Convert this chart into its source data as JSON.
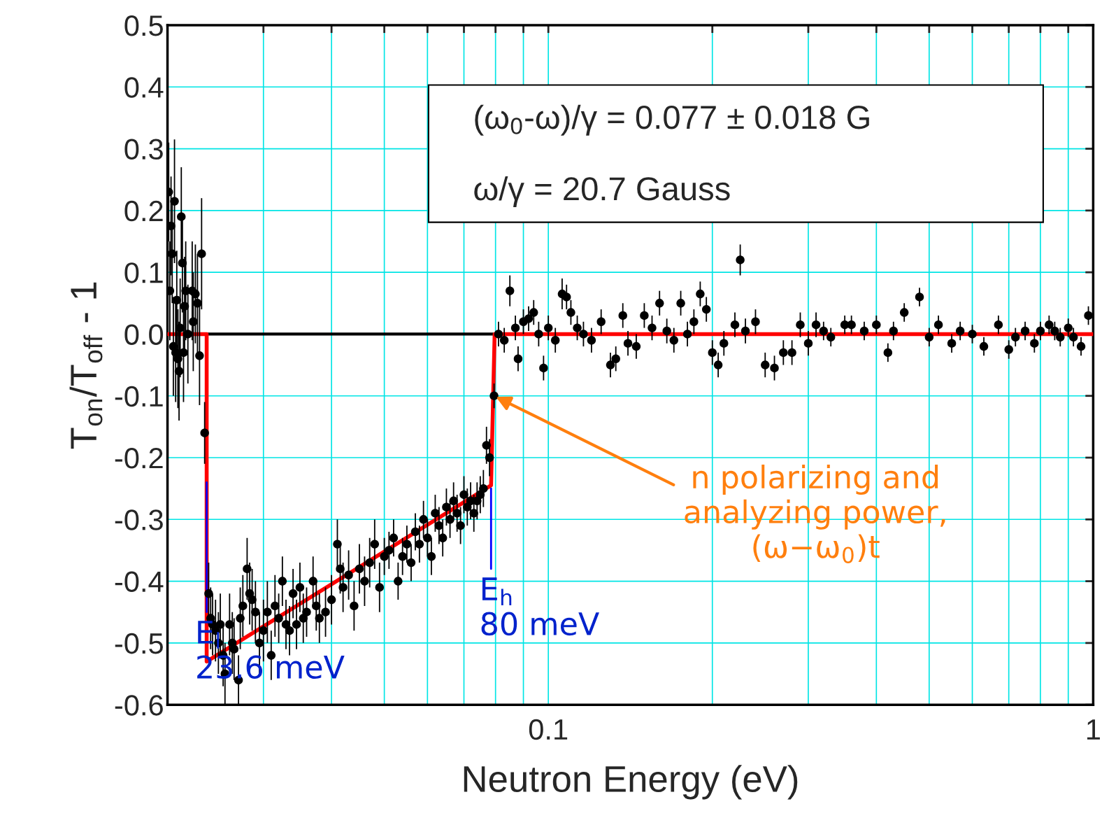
{
  "chart_data": {
    "type": "scatter",
    "xlabel": "Neutron Energy (eV)",
    "ylabel": "T$_{on}$/T$_{off}$ - 1",
    "log": "x",
    "grid": true,
    "marker": "circle",
    "xlim": [
      0.02,
      1
    ],
    "ylim": [
      -0.6,
      0.5
    ],
    "xticks": [
      {
        "value": 0.02,
        "label": null
      },
      {
        "value": 0.03,
        "label": null
      },
      {
        "value": 0.04,
        "label": null
      },
      {
        "value": 0.05,
        "label": null
      },
      {
        "value": 0.06,
        "label": null
      },
      {
        "value": 0.07,
        "label": null
      },
      {
        "value": 0.08,
        "label": null
      },
      {
        "value": 0.09,
        "label": null
      },
      0.1,
      {
        "value": 0.2,
        "label": null
      },
      {
        "value": 0.3,
        "label": null
      },
      {
        "value": 0.4,
        "label": null
      },
      {
        "value": 0.5,
        "label": null
      },
      {
        "value": 0.6,
        "label": null
      },
      {
        "value": 0.7,
        "label": null
      },
      {
        "value": 0.8,
        "label": null
      },
      {
        "value": 0.9,
        "label": null
      },
      1
    ],
    "yticks": [
      -0.6,
      -0.5,
      -0.4,
      -0.3,
      -0.2,
      -0.1,
      {
        "value": 0,
        "label": "0.0"
      },
      0.1,
      0.2,
      0.3,
      0.4,
      0.5
    ],
    "ref_lines": [
      {
        "axis": "y",
        "value": 0,
        "color": "#000000"
      }
    ],
    "series": [
      {
        "color": "#000000",
        "x": [
          0.0201,
          0.0202,
          0.0203,
          0.0204,
          0.0205,
          0.0206,
          0.0207,
          0.0208,
          0.0209,
          0.021,
          0.0211,
          0.0212,
          0.0213,
          0.0214,
          0.0215,
          0.0216,
          0.0218,
          0.0222,
          0.0223,
          0.0225,
          0.0227,
          0.0229,
          0.0231,
          0.0234,
          0.0238,
          0.024,
          0.0242,
          0.0245,
          0.0248,
          0.025,
          0.0253,
          0.0255,
          0.026,
          0.0263,
          0.0265,
          0.027,
          0.0272,
          0.0275,
          0.028,
          0.0283,
          0.0286,
          0.029,
          0.0295,
          0.03,
          0.0305,
          0.031,
          0.0315,
          0.032,
          0.0325,
          0.033,
          0.0335,
          0.034,
          0.0345,
          0.035,
          0.0355,
          0.036,
          0.037,
          0.0375,
          0.038,
          0.039,
          0.04,
          0.041,
          0.0415,
          0.042,
          0.043,
          0.044,
          0.045,
          0.046,
          0.047,
          0.048,
          0.049,
          0.05,
          0.051,
          0.052,
          0.053,
          0.054,
          0.055,
          0.056,
          0.057,
          0.058,
          0.059,
          0.06,
          0.061,
          0.062,
          0.063,
          0.064,
          0.065,
          0.066,
          0.067,
          0.068,
          0.069,
          0.07,
          0.071,
          0.072,
          0.073,
          0.074,
          0.075,
          0.076,
          0.077,
          0.078,
          0.0795,
          0.081,
          0.083,
          0.085,
          0.087,
          0.088,
          0.09,
          0.092,
          0.094,
          0.096,
          0.098,
          0.1,
          0.103,
          0.106,
          0.108,
          0.11,
          0.113,
          0.116,
          0.12,
          0.125,
          0.13,
          0.133,
          0.137,
          0.14,
          0.145,
          0.15,
          0.155,
          0.16,
          0.165,
          0.17,
          0.175,
          0.18,
          0.185,
          0.19,
          0.195,
          0.2,
          0.205,
          0.21,
          0.22,
          0.225,
          0.23,
          0.24,
          0.25,
          0.26,
          0.27,
          0.28,
          0.29,
          0.3,
          0.31,
          0.32,
          0.33,
          0.35,
          0.36,
          0.38,
          0.4,
          0.42,
          0.43,
          0.45,
          0.48,
          0.5,
          0.52,
          0.55,
          0.57,
          0.6,
          0.63,
          0.67,
          0.7,
          0.72,
          0.75,
          0.78,
          0.8,
          0.83,
          0.85,
          0.87,
          0.9,
          0.92,
          0.95,
          0.98
        ],
        "values": [
          0.23,
          0.07,
          0.175,
          0.13,
          -0.02,
          0.215,
          -0.03,
          0.055,
          -0.04,
          -0.06,
          0.01,
          0.19,
          0.115,
          -0.03,
          0.045,
          0.07,
          0.0,
          0.07,
          0.02,
          0.065,
          0.05,
          -0.035,
          0.13,
          -0.16,
          -0.42,
          -0.46,
          -0.47,
          -0.48,
          -0.5,
          -0.47,
          -0.52,
          -0.55,
          -0.47,
          -0.5,
          -0.51,
          -0.56,
          -0.46,
          -0.44,
          -0.38,
          -0.42,
          -0.43,
          -0.45,
          -0.5,
          -0.48,
          -0.45,
          -0.52,
          -0.44,
          -0.46,
          -0.4,
          -0.47,
          -0.48,
          -0.42,
          -0.47,
          -0.41,
          -0.46,
          -0.45,
          -0.4,
          -0.44,
          -0.46,
          -0.45,
          -0.43,
          -0.34,
          -0.38,
          -0.41,
          -0.39,
          -0.44,
          -0.38,
          -0.4,
          -0.37,
          -0.34,
          -0.41,
          -0.36,
          -0.35,
          -0.33,
          -0.4,
          -0.36,
          -0.34,
          -0.37,
          -0.32,
          -0.34,
          -0.3,
          -0.33,
          -0.36,
          -0.29,
          -0.31,
          -0.33,
          -0.28,
          -0.3,
          -0.27,
          -0.29,
          -0.31,
          -0.26,
          -0.28,
          -0.27,
          -0.29,
          -0.27,
          -0.26,
          -0.25,
          -0.18,
          -0.2,
          -0.1,
          0.0,
          -0.01,
          0.07,
          0.01,
          -0.04,
          0.02,
          0.025,
          0.035,
          0.0,
          -0.055,
          0.01,
          -0.01,
          0.065,
          0.06,
          0.035,
          0.01,
          0.0,
          -0.01,
          0.02,
          -0.05,
          -0.04,
          0.03,
          -0.015,
          -0.02,
          0.03,
          0.01,
          0.05,
          0.005,
          -0.01,
          0.05,
          0.0,
          0.02,
          0.065,
          0.04,
          -0.03,
          -0.05,
          -0.015,
          0.015,
          0.12,
          0.005,
          0.02,
          -0.05,
          -0.055,
          -0.03,
          -0.03,
          0.015,
          -0.015,
          0.015,
          0.005,
          -0.005,
          0.015,
          0.015,
          0.005,
          0.015,
          -0.03,
          0.005,
          0.035,
          0.06,
          -0.005,
          0.015,
          -0.015,
          0.005,
          0.0,
          -0.02,
          0.015,
          -0.025,
          -0.005,
          0.005,
          -0.015,
          0.005,
          0.015,
          0.005,
          -0.005,
          0.01,
          -0.005,
          -0.02,
          0.03
        ],
        "errors": [
          0.08,
          0.08,
          0.08,
          0.08,
          0.08,
          0.1,
          0.08,
          0.08,
          0.08,
          0.08,
          0.08,
          0.08,
          0.08,
          0.08,
          0.08,
          0.08,
          0.08,
          0.08,
          0.08,
          0.08,
          0.08,
          0.08,
          0.09,
          0.05,
          0.05,
          0.05,
          0.05,
          0.05,
          0.05,
          0.05,
          0.05,
          0.05,
          0.05,
          0.05,
          0.05,
          0.04,
          0.05,
          0.05,
          0.05,
          0.05,
          0.05,
          0.05,
          0.05,
          0.05,
          0.05,
          0.04,
          0.05,
          0.04,
          0.04,
          0.04,
          0.04,
          0.04,
          0.04,
          0.04,
          0.04,
          0.04,
          0.04,
          0.04,
          0.04,
          0.04,
          0.04,
          0.04,
          0.04,
          0.04,
          0.04,
          0.04,
          0.04,
          0.04,
          0.04,
          0.04,
          0.04,
          0.03,
          0.03,
          0.03,
          0.03,
          0.03,
          0.03,
          0.03,
          0.03,
          0.03,
          0.03,
          0.03,
          0.03,
          0.03,
          0.03,
          0.03,
          0.03,
          0.03,
          0.03,
          0.03,
          0.03,
          0.03,
          0.03,
          0.03,
          0.03,
          0.03,
          0.03,
          0.03,
          0.03,
          0.03,
          0.02,
          0.02,
          0.02,
          0.025,
          0.02,
          0.02,
          0.02,
          0.02,
          0.02,
          0.02,
          0.02,
          0.02,
          0.02,
          0.025,
          0.02,
          0.02,
          0.02,
          0.02,
          0.02,
          0.02,
          0.02,
          0.02,
          0.02,
          0.02,
          0.02,
          0.02,
          0.02,
          0.02,
          0.02,
          0.02,
          0.02,
          0.02,
          0.02,
          0.02,
          0.02,
          0.02,
          0.02,
          0.02,
          0.02,
          0.025,
          0.02,
          0.02,
          0.02,
          0.02,
          0.02,
          0.02,
          0.02,
          0.02,
          0.02,
          0.015,
          0.015,
          0.015,
          0.015,
          0.015,
          0.015,
          0.015,
          0.015,
          0.015,
          0.015,
          0.015,
          0.015,
          0.015,
          0.015,
          0.015,
          0.015,
          0.015,
          0.015,
          0.015,
          0.015,
          0.015,
          0.015,
          0.015,
          0.015,
          0.015,
          0.015,
          0.015,
          0.015,
          0.015
        ]
      },
      {
        "type": "line",
        "marker": "none",
        "color": "#ff0000",
        "x": [
          0.02,
          0.0236,
          0.0236,
          0.0785,
          0.0797,
          1
        ],
        "values": [
          0,
          0,
          -0.53,
          -0.245,
          0,
          0
        ]
      },
      {
        "type": "line",
        "marker": "none",
        "color": "#0000ff",
        "x": [
          0.0236,
          0.0236
        ],
        "values": [
          -0.24,
          -0.45
        ]
      },
      {
        "type": "line",
        "marker": "none",
        "color": "#0000ff",
        "x": [
          0.0785,
          0.0785
        ],
        "values": [
          -0.25,
          -0.38
        ]
      }
    ],
    "annotations": [
      "(ω$_{0}$-ω)/γ = 0.077 ± 0.018 G",
      "ω/γ = 20.7 Gauss",
      {
        "text": "E$_{l}$\n23.6 meV",
        "x": 0.0236,
        "y": -0.45
      },
      {
        "text": "E$_{h}$\n80 meV",
        "x": 0.0785,
        "y": -0.38
      },
      {
        "text": "n polarizing and\nanalyzing power,\n(ω−ω$_{0}$)t",
        "x": 0.0795,
        "y": -0.1
      }
    ]
  }
}
